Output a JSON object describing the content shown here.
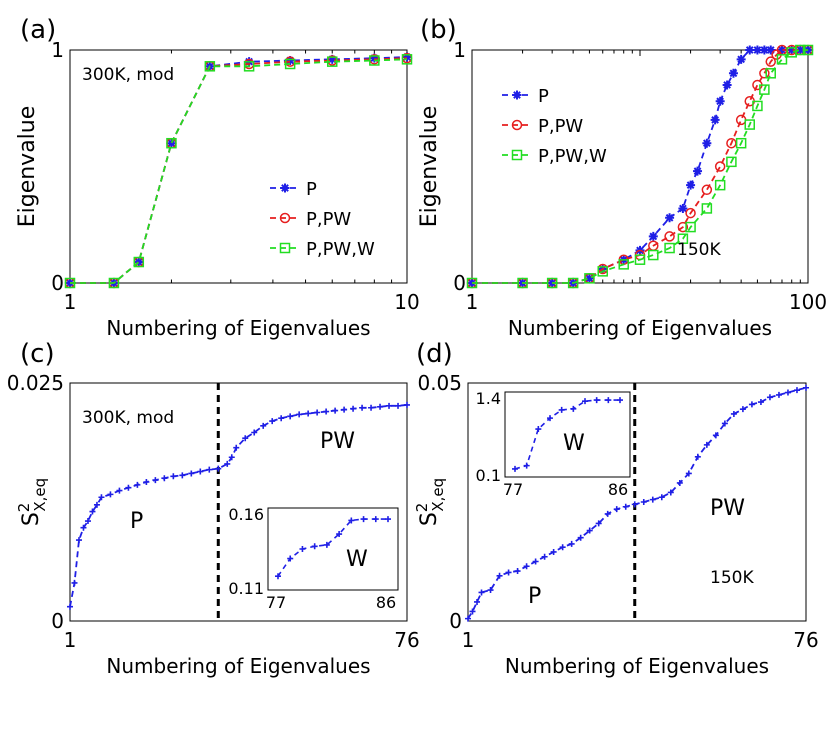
{
  "chart_data": [
    {
      "panel": "(a)",
      "type": "line",
      "xlabel": "Numbering of Eigenvalues",
      "ylabel": "Eigenvalue",
      "x_scale": "log",
      "xlim": [
        1,
        10
      ],
      "ylim": [
        0,
        1
      ],
      "xticks": [
        "1",
        "10"
      ],
      "yticks": [
        "0",
        "1"
      ],
      "annotation": "300K, mod",
      "legend": [
        "P",
        "P,PW",
        "P,PW,W"
      ],
      "legend_position": "center-right",
      "x": [
        1,
        1.35,
        1.6,
        2.0,
        2.6,
        3.4,
        4.5,
        6.0,
        8.0,
        10
      ],
      "series": [
        {
          "name": "P",
          "color": "#1f1fe6",
          "marker": "star",
          "values": [
            0.0,
            0.0,
            0.09,
            0.6,
            0.93,
            0.95,
            0.955,
            0.96,
            0.965,
            0.97
          ]
        },
        {
          "name": "P,PW",
          "color": "#e61f1f",
          "marker": "circle",
          "values": [
            0.0,
            0.0,
            0.09,
            0.6,
            0.93,
            0.94,
            0.95,
            0.955,
            0.96,
            0.965
          ]
        },
        {
          "name": "P,PW,W",
          "color": "#22dd22",
          "marker": "square",
          "values": [
            0.0,
            0.0,
            0.09,
            0.6,
            0.93,
            0.93,
            0.94,
            0.95,
            0.955,
            0.96
          ]
        }
      ]
    },
    {
      "panel": "(b)",
      "type": "line",
      "xlabel": "Numbering of Eigenvalues",
      "ylabel": "Eigenvalue",
      "x_scale": "log",
      "xlim": [
        1,
        100
      ],
      "ylim": [
        0,
        1
      ],
      "xticks": [
        "1",
        "100"
      ],
      "yticks": [
        "0",
        "1"
      ],
      "annotation": "150K",
      "legend": [
        "P",
        "P,PW",
        "P,PW,W"
      ],
      "legend_position": "top-left",
      "series": [
        {
          "name": "P",
          "color": "#1f1fe6",
          "marker": "star",
          "x": [
            1,
            2,
            3,
            4,
            5,
            6,
            8,
            10,
            12,
            15,
            18,
            20,
            22,
            25,
            28,
            30,
            33,
            36,
            40,
            45,
            50,
            55,
            60,
            70,
            80,
            90,
            100
          ],
          "values": [
            0,
            0,
            0,
            0,
            0.02,
            0.06,
            0.1,
            0.14,
            0.2,
            0.28,
            0.32,
            0.42,
            0.48,
            0.6,
            0.7,
            0.78,
            0.85,
            0.9,
            0.96,
            1,
            1,
            1,
            1,
            1,
            1,
            1,
            1
          ]
        },
        {
          "name": "P,PW",
          "color": "#e61f1f",
          "marker": "circle",
          "x": [
            1,
            2,
            3,
            4,
            5,
            6,
            8,
            10,
            12,
            15,
            18,
            20,
            25,
            30,
            35,
            40,
            45,
            50,
            55,
            60,
            65,
            70,
            80,
            90,
            100
          ],
          "values": [
            0,
            0,
            0,
            0,
            0.02,
            0.06,
            0.1,
            0.12,
            0.16,
            0.2,
            0.24,
            0.3,
            0.4,
            0.5,
            0.6,
            0.7,
            0.78,
            0.85,
            0.9,
            0.95,
            0.98,
            1,
            1,
            1,
            1
          ]
        },
        {
          "name": "P,PW,W",
          "color": "#22dd22",
          "marker": "square",
          "x": [
            1,
            2,
            3,
            4,
            5,
            6,
            8,
            10,
            12,
            15,
            18,
            20,
            25,
            30,
            35,
            40,
            45,
            50,
            55,
            60,
            70,
            80,
            90,
            100
          ],
          "values": [
            0,
            0,
            0,
            0,
            0.02,
            0.05,
            0.08,
            0.1,
            0.12,
            0.15,
            0.19,
            0.24,
            0.32,
            0.42,
            0.52,
            0.6,
            0.68,
            0.76,
            0.83,
            0.9,
            0.96,
            0.99,
            1,
            1
          ]
        }
      ]
    },
    {
      "panel": "(c)",
      "type": "line",
      "xlabel": "Numbering of Eigenvalues",
      "ylabel": "S",
      "ylabel_sup": "2",
      "ylabel_sub": "X,eq",
      "xlim": [
        1,
        76
      ],
      "ylim": [
        0,
        0.025
      ],
      "xticks": [
        "1",
        "76"
      ],
      "yticks": [
        "0",
        "0.025"
      ],
      "annotation": "300K, mod",
      "region_labels": [
        "P",
        "PW"
      ],
      "divider_x": 34,
      "series": [
        {
          "name": "",
          "color": "#1f1fe6",
          "x": [
            1,
            2,
            3,
            4,
            5,
            6,
            7,
            8,
            10,
            12,
            14,
            16,
            18,
            20,
            22,
            24,
            26,
            28,
            30,
            32,
            34,
            36,
            37,
            38,
            40,
            42,
            44,
            46,
            48,
            50,
            52,
            54,
            56,
            58,
            60,
            62,
            64,
            66,
            68,
            70,
            72,
            74,
            76
          ],
          "values": [
            0.0015,
            0.004,
            0.0085,
            0.0098,
            0.0105,
            0.0115,
            0.0122,
            0.013,
            0.0133,
            0.0137,
            0.014,
            0.0143,
            0.0146,
            0.0148,
            0.015,
            0.0152,
            0.0153,
            0.0155,
            0.0157,
            0.0159,
            0.016,
            0.0165,
            0.0172,
            0.0182,
            0.0192,
            0.0198,
            0.0205,
            0.021,
            0.0213,
            0.0215,
            0.0217,
            0.0218,
            0.0219,
            0.022,
            0.0221,
            0.0222,
            0.0223,
            0.0224,
            0.0224,
            0.0225,
            0.0226,
            0.0226,
            0.0227
          ]
        }
      ],
      "inset": {
        "xlim": [
          77,
          86
        ],
        "ylim": [
          0.11,
          0.16
        ],
        "xticks": [
          "77",
          "86"
        ],
        "yticks": [
          "0.11",
          "0.16"
        ],
        "label": "W",
        "x": [
          77,
          78,
          79,
          80,
          81,
          82,
          83,
          84,
          85,
          86
        ],
        "values": [
          0.115,
          0.128,
          0.135,
          0.137,
          0.138,
          0.146,
          0.156,
          0.157,
          0.157,
          0.157
        ]
      }
    },
    {
      "panel": "(d)",
      "type": "line",
      "xlabel": "Numbering of Eigenvalues",
      "ylabel": "S",
      "ylabel_sup": "2",
      "ylabel_sub": "X,eq",
      "xlim": [
        1,
        76
      ],
      "ylim": [
        0,
        0.05
      ],
      "xticks": [
        "1",
        "76"
      ],
      "yticks": [
        "0",
        "0.05"
      ],
      "annotation": "150K",
      "region_labels": [
        "P",
        "PW"
      ],
      "divider_x": 38,
      "series": [
        {
          "name": "",
          "color": "#1f1fe6",
          "x": [
            1,
            2,
            3,
            4,
            6,
            8,
            10,
            12,
            14,
            16,
            18,
            20,
            22,
            24,
            26,
            28,
            30,
            32,
            34,
            36,
            38,
            40,
            42,
            44,
            46,
            48,
            50,
            52,
            54,
            56,
            58,
            60,
            62,
            64,
            66,
            68,
            70,
            72,
            74,
            76
          ],
          "values": [
            0.0005,
            0.002,
            0.004,
            0.006,
            0.0065,
            0.0095,
            0.0102,
            0.0105,
            0.0115,
            0.0125,
            0.0135,
            0.0145,
            0.0155,
            0.0162,
            0.0175,
            0.019,
            0.0205,
            0.0225,
            0.0235,
            0.024,
            0.0245,
            0.025,
            0.0255,
            0.026,
            0.027,
            0.029,
            0.031,
            0.0345,
            0.037,
            0.039,
            0.0415,
            0.0435,
            0.0445,
            0.0455,
            0.046,
            0.047,
            0.0475,
            0.048,
            0.0485,
            0.049
          ]
        }
      ],
      "inset": {
        "xlim": [
          77,
          86
        ],
        "ylim": [
          0.1,
          1.4
        ],
        "xticks": [
          "77",
          "86"
        ],
        "yticks": [
          "0.1",
          "1.4"
        ],
        "label": "W",
        "x": [
          77,
          78,
          79,
          80,
          81,
          82,
          83,
          84,
          85,
          86
        ],
        "values": [
          0.12,
          0.18,
          0.85,
          1.05,
          1.2,
          1.22,
          1.36,
          1.38,
          1.38,
          1.38
        ]
      }
    }
  ]
}
